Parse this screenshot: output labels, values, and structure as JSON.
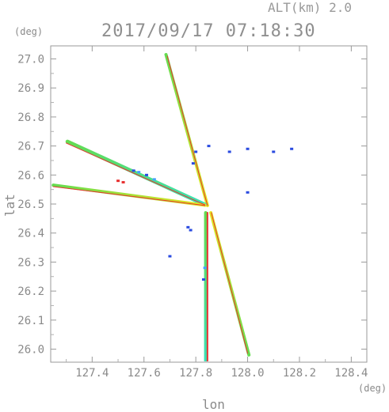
{
  "alt_label": "ALT(km)  2.0",
  "timestamp": "2017/09/17  07:18:30",
  "chart_data": {
    "type": "scatter",
    "title": "",
    "xlabel": "lon",
    "ylabel": "lat",
    "x_unit": "(deg)",
    "y_unit": "(deg)",
    "xlim": [
      127.24,
      128.46
    ],
    "ylim": [
      25.955,
      27.045
    ],
    "xticks": [
      127.4,
      127.6,
      127.8,
      128.0,
      128.2,
      128.4
    ],
    "yticks": [
      26.0,
      26.1,
      26.2,
      26.3,
      26.4,
      26.5,
      26.6,
      26.7,
      26.8,
      26.9,
      27.0
    ],
    "xtick_labels": [
      "127.4",
      "127.6",
      "127.8",
      "128.0",
      "128.2",
      "128.4"
    ],
    "ytick_labels": [
      "26.0",
      "26.1",
      "26.2",
      "26.3",
      "26.4",
      "26.5",
      "26.6",
      "26.7",
      "26.8",
      "26.9",
      "27.0"
    ],
    "grid": false,
    "colors": {
      "strong_yellow": "#e6e61e",
      "green": "#64dc50",
      "cyan": "#3ce0b4",
      "red": "#e83232",
      "blue": "#2a4be0",
      "light_blue": "#46a0ff"
    },
    "streaks": [
      {
        "from": [
          127.845,
          26.495
        ],
        "to": [
          127.685,
          27.015
        ],
        "colors": [
          "strong_yellow",
          "green"
        ],
        "width": 4
      },
      {
        "from": [
          127.835,
          26.498
        ],
        "to": [
          127.305,
          26.715
        ],
        "colors": [
          "cyan",
          "green"
        ],
        "width": 5
      },
      {
        "from": [
          127.835,
          26.496
        ],
        "to": [
          127.25,
          26.565
        ],
        "colors": [
          "strong_yellow",
          "green"
        ],
        "width": 4
      },
      {
        "from": [
          127.858,
          26.47
        ],
        "to": [
          128.005,
          25.98
        ],
        "colors": [
          "strong_yellow",
          "green"
        ],
        "width": 4
      },
      {
        "from": [
          127.838,
          26.47
        ],
        "to": [
          127.838,
          25.96
        ],
        "colors": [
          "green",
          "cyan"
        ],
        "width": 4
      },
      {
        "from": [
          127.845,
          26.495
        ],
        "to": [
          127.69,
          27.01
        ],
        "colors": [
          "red"
        ],
        "width": 1
      },
      {
        "from": [
          127.835,
          26.497
        ],
        "to": [
          127.3,
          26.71
        ],
        "colors": [
          "red"
        ],
        "width": 1
      },
      {
        "from": [
          127.835,
          26.495
        ],
        "to": [
          127.25,
          26.56
        ],
        "colors": [
          "red"
        ],
        "width": 1
      },
      {
        "from": [
          127.86,
          26.47
        ],
        "to": [
          128.0,
          25.985
        ],
        "colors": [
          "red"
        ],
        "width": 1
      },
      {
        "from": [
          127.845,
          26.47
        ],
        "to": [
          127.845,
          25.96
        ],
        "colors": [
          "red"
        ],
        "width": 2
      }
    ],
    "echoes": [
      {
        "lon": 127.56,
        "lat": 26.615,
        "color": "blue"
      },
      {
        "lon": 127.58,
        "lat": 26.61,
        "color": "light_blue"
      },
      {
        "lon": 127.61,
        "lat": 26.6,
        "color": "blue"
      },
      {
        "lon": 127.64,
        "lat": 26.585,
        "color": "light_blue"
      },
      {
        "lon": 127.5,
        "lat": 26.58,
        "color": "red"
      },
      {
        "lon": 127.52,
        "lat": 26.575,
        "color": "red"
      },
      {
        "lon": 127.8,
        "lat": 26.68,
        "color": "blue"
      },
      {
        "lon": 127.79,
        "lat": 26.64,
        "color": "blue"
      },
      {
        "lon": 127.77,
        "lat": 26.42,
        "color": "blue"
      },
      {
        "lon": 127.78,
        "lat": 26.41,
        "color": "blue"
      },
      {
        "lon": 127.83,
        "lat": 26.24,
        "color": "blue"
      },
      {
        "lon": 127.835,
        "lat": 26.28,
        "color": "light_blue"
      },
      {
        "lon": 127.7,
        "lat": 26.32,
        "color": "blue"
      },
      {
        "lon": 127.93,
        "lat": 26.68,
        "color": "blue"
      },
      {
        "lon": 128.0,
        "lat": 26.69,
        "color": "blue"
      },
      {
        "lon": 128.1,
        "lat": 26.68,
        "color": "blue"
      },
      {
        "lon": 128.17,
        "lat": 26.69,
        "color": "blue"
      },
      {
        "lon": 128.0,
        "lat": 26.54,
        "color": "blue"
      },
      {
        "lon": 127.85,
        "lat": 26.7,
        "color": "blue"
      }
    ]
  }
}
